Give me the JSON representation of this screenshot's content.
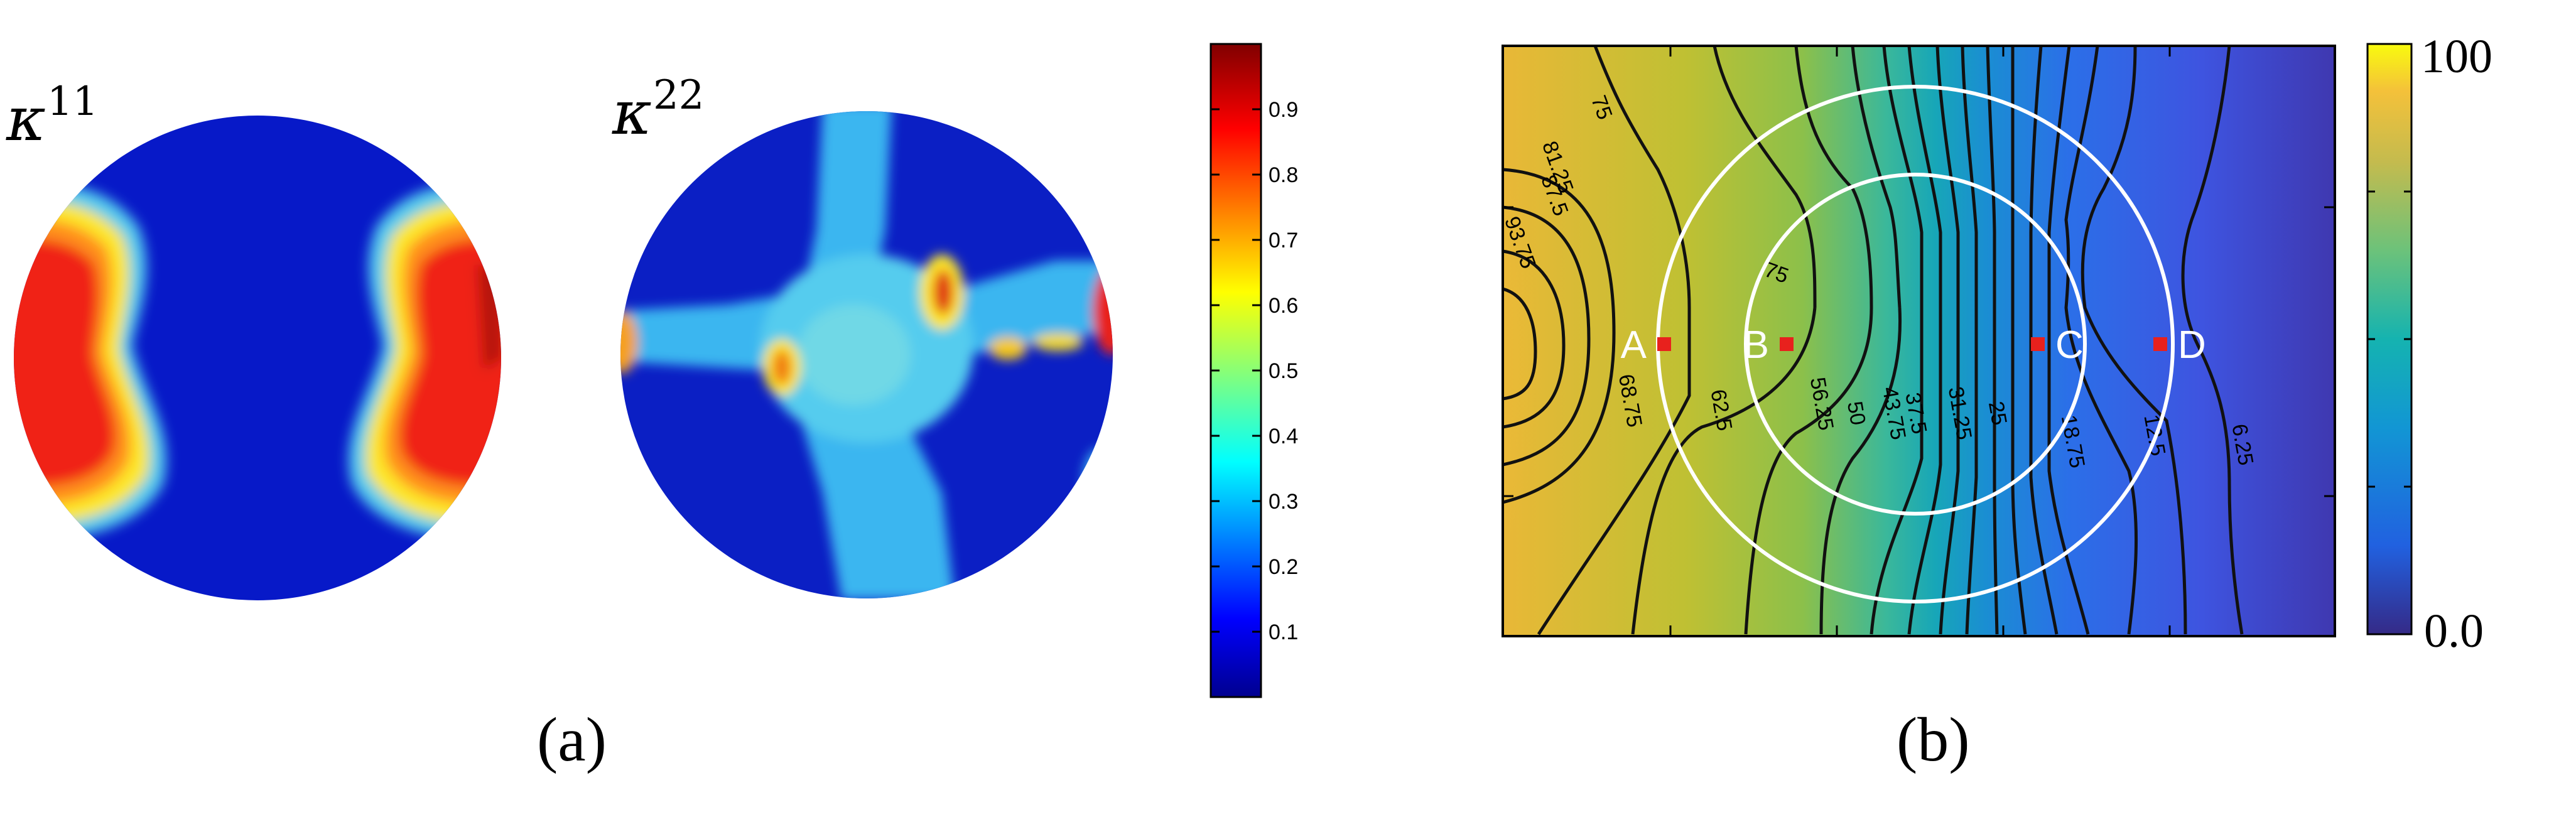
{
  "panel_a": {
    "caption": "(a)",
    "maps": [
      {
        "symbol": "κ",
        "superscript": "11"
      },
      {
        "symbol": "κ",
        "superscript": "22"
      }
    ],
    "colorbar": {
      "ticks": [
        "0.9",
        "0.8",
        "0.7",
        "0.6",
        "0.5",
        "0.4",
        "0.3",
        "0.2",
        "0.1"
      ],
      "colormap": "jet"
    }
  },
  "panel_b": {
    "caption": "(b)",
    "colorbar": {
      "max_label": "100",
      "min_label": "0.0",
      "colormap": "parula"
    },
    "points": [
      "A",
      "B",
      "C",
      "D"
    ],
    "point_color": "#e8211d",
    "circle_color": "#ffffff"
  },
  "chart_data": [
    {
      "type": "heatmap",
      "title": "",
      "panel": "(a)",
      "fields": [
        "κ11",
        "κ22"
      ],
      "colorbar_range": [
        0.0,
        1.0
      ],
      "colorbar_ticks": [
        0.1,
        0.2,
        0.3,
        0.4,
        0.5,
        0.6,
        0.7,
        0.8,
        0.9
      ],
      "colormap": "jet"
    },
    {
      "type": "heatmap",
      "title": "",
      "panel": "(b)",
      "colorbar_range": [
        0.0,
        100
      ],
      "colormap": "parula",
      "contour_levels": [
        6.25,
        12.5,
        18.75,
        25,
        31.25,
        37.5,
        43.75,
        50,
        56.25,
        62.5,
        68.75,
        75,
        81.25,
        87.5,
        93.75
      ],
      "contour_labels_shown": [
        "75",
        "93.75",
        "87.5",
        "81.25",
        "75",
        "68.75",
        "62.5",
        "56.25",
        "50",
        "43.75",
        "37.5",
        "31.25",
        "25",
        "18.75",
        "12.5",
        "6.25"
      ],
      "points": [
        "A",
        "B",
        "C",
        "D"
      ]
    }
  ]
}
